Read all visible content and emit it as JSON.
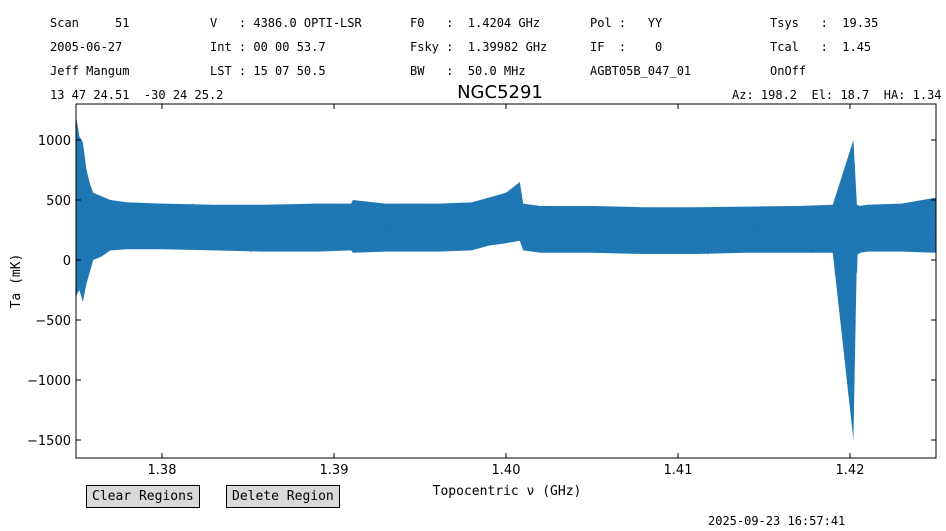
{
  "header": {
    "scan": "Scan     51",
    "date": "2005-06-27",
    "observer": "Jeff Mangum",
    "coords": "13 47 24.51  -30 24 25.2",
    "velocity": "V   : 4386.0 OPTI-LSR",
    "int": "Int : 00 00 53.7",
    "lst": "LST : 15 07 50.5",
    "f0": "F0   :  1.4204 GHz",
    "fsky": "Fsky :  1.39982 GHz",
    "bw": "BW   :  50.0 MHz",
    "pol": "Pol :   YY",
    "if": "IF  :    0",
    "project": "AGBT05B_047_01",
    "tsys": "Tsys   :  19.35",
    "tcal": "Tcal   :  1.45",
    "proc": "OnOff",
    "azel": "Az: 198.2  El: 18.7  HA: 1.34"
  },
  "buttons": {
    "clear": "Clear Regions",
    "delete": "Delete Region"
  },
  "timestamp": "2025-09-23 16:57:41",
  "colors": {
    "series": "#1f77b4"
  },
  "chart_data": {
    "type": "line",
    "title": "NGC5291",
    "xlabel": "Topocentric ν (GHz)",
    "ylabel": "Ta (mK)",
    "xlim": [
      1.375,
      1.425
    ],
    "ylim": [
      -1650,
      1300
    ],
    "xticks": [
      "1.38",
      "1.39",
      "1.40",
      "1.41",
      "1.42"
    ],
    "yticks": [
      "−1500",
      "−1000",
      "−500",
      "0",
      "500",
      "1000"
    ],
    "grid": false,
    "series": [
      {
        "x": [
          1.375,
          1.3752,
          1.3754,
          1.3756,
          1.3758,
          1.376,
          1.3765,
          1.377,
          1.378,
          1.38,
          1.383,
          1.386,
          1.389,
          1.391,
          1.3911,
          1.393,
          1.396,
          1.398,
          1.399,
          1.4,
          1.4008,
          1.401,
          1.402,
          1.405,
          1.408,
          1.411,
          1.414,
          1.417,
          1.419,
          1.4202,
          1.4204,
          1.4206,
          1.421,
          1.423,
          1.425
        ],
        "y": [
          250,
          300,
          280,
          320,
          260,
          300,
          280,
          260,
          260,
          260,
          255,
          255,
          260,
          270,
          290,
          265,
          265,
          285,
          315,
          335,
          380,
          290,
          260,
          250,
          245,
          245,
          250,
          250,
          250,
          240,
          200,
          230,
          260,
          255,
          260
        ],
        "upper": [
          1200,
          1030,
          980,
          760,
          640,
          560,
          530,
          500,
          480,
          470,
          460,
          460,
          470,
          470,
          500,
          470,
          470,
          480,
          520,
          560,
          650,
          470,
          450,
          450,
          440,
          440,
          445,
          450,
          460,
          1000,
          460,
          450,
          460,
          470,
          520
        ],
        "lower": [
          -300,
          -250,
          -350,
          -200,
          -100,
          0,
          30,
          80,
          90,
          90,
          80,
          70,
          70,
          80,
          60,
          70,
          70,
          80,
          120,
          140,
          160,
          80,
          60,
          60,
          50,
          50,
          60,
          60,
          60,
          -1500,
          40,
          60,
          70,
          70,
          60
        ]
      }
    ]
  }
}
